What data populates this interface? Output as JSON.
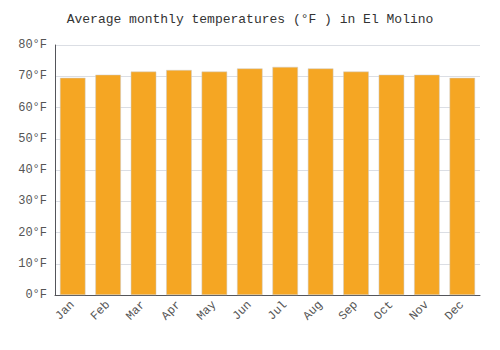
{
  "chart_data": {
    "type": "bar",
    "title": "Average monthly temperatures (°F ) in El Molino",
    "categories": [
      "Jan",
      "Feb",
      "Mar",
      "Apr",
      "May",
      "Jun",
      "Jul",
      "Aug",
      "Sep",
      "Oct",
      "Nov",
      "Dec"
    ],
    "values": [
      69.5,
      70.5,
      71.5,
      72.0,
      71.5,
      72.5,
      73.0,
      72.5,
      71.5,
      70.5,
      70.5,
      69.5
    ],
    "color": "#F5A623",
    "ylim": [
      0,
      80
    ],
    "yticks": [
      {
        "value": 0,
        "label": "0°F"
      },
      {
        "value": 10,
        "label": "10°F"
      },
      {
        "value": 20,
        "label": "20°F"
      },
      {
        "value": 30,
        "label": "30°F"
      },
      {
        "value": 40,
        "label": "40°F"
      },
      {
        "value": 50,
        "label": "50°F"
      },
      {
        "value": 60,
        "label": "60°F"
      },
      {
        "value": 70,
        "label": "70°F"
      },
      {
        "value": 80,
        "label": "80°F"
      }
    ],
    "grid": true
  }
}
